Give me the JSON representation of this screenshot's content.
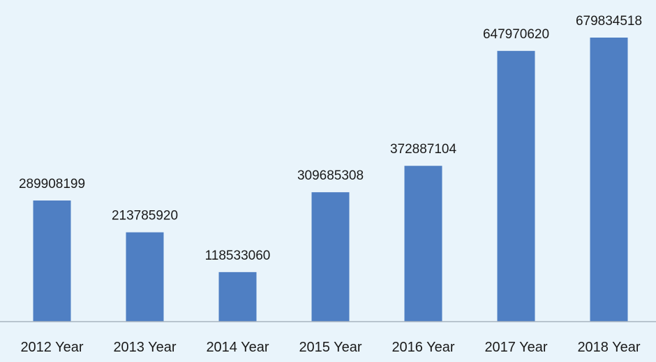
{
  "chart_data": {
    "type": "bar",
    "title": "",
    "xlabel": "",
    "ylabel": "",
    "categories": [
      "2012 Year",
      "2013 Year",
      "2014 Year",
      "2015 Year",
      "2016 Year",
      "2017 Year",
      "2018 Year"
    ],
    "values": [
      289908199,
      213785920,
      118533060,
      309685308,
      372887104,
      647970620,
      679834518
    ],
    "ylim": [
      0,
      700000000
    ],
    "grid": false,
    "legend": "none",
    "bar_color": "#4f7fc3",
    "axis_color": "#a8b4c0",
    "background": "#e9f4fb"
  }
}
